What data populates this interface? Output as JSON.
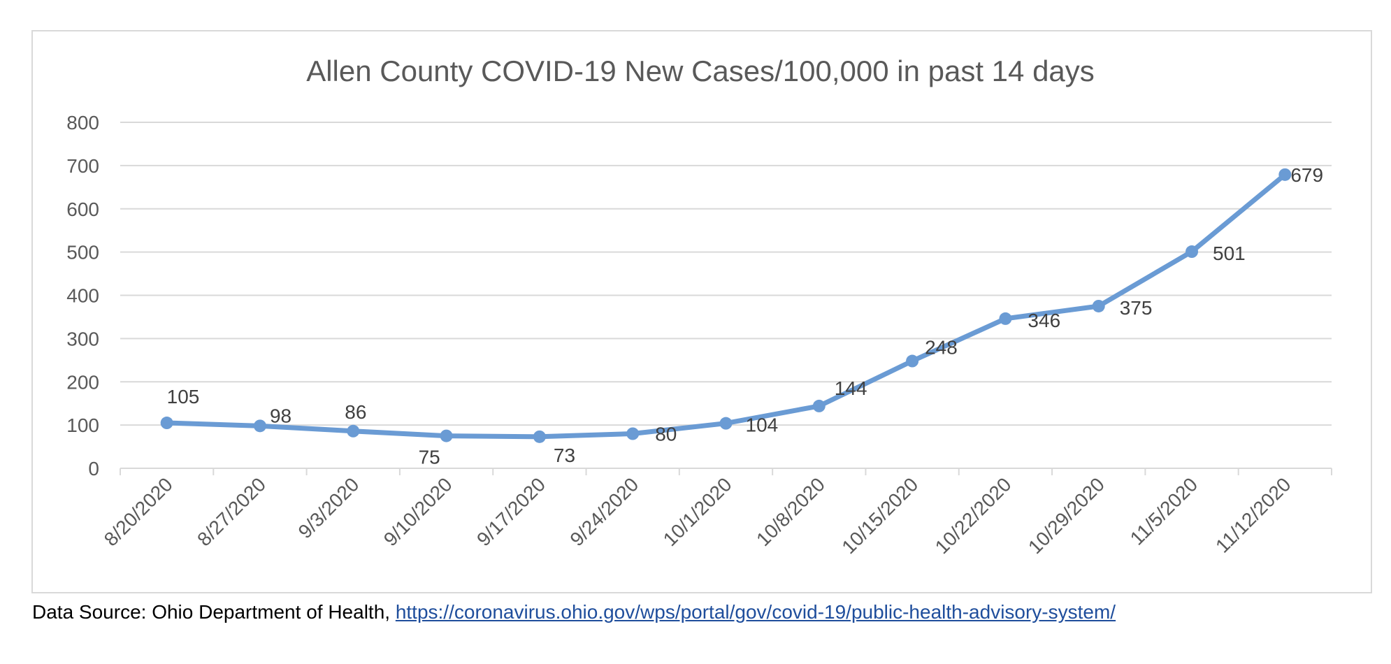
{
  "colors": {
    "series": "#6a9bd4",
    "grid": "#d9d9d9",
    "axis_text": "#595959",
    "label_text": "#404040",
    "link": "#1f4e9c"
  },
  "chart_data": {
    "type": "line",
    "title": "Allen County COVID-19 New Cases/100,000 in past 14 days",
    "xlabel": "",
    "ylabel": "",
    "categories": [
      "8/20/2020",
      "8/27/2020",
      "9/3/2020",
      "9/10/2020",
      "9/17/2020",
      "9/24/2020",
      "10/1/2020",
      "10/8/2020",
      "10/15/2020",
      "10/22/2020",
      "10/29/2020",
      "11/5/2020",
      "11/12/2020"
    ],
    "series": [
      {
        "values": [
          105,
          98,
          86,
          75,
          73,
          80,
          104,
          144,
          248,
          346,
          375,
          501,
          679
        ],
        "data_labels": [
          "105",
          "98",
          "86",
          "75",
          "73",
          "80",
          "104",
          "144",
          "248",
          "346",
          "375",
          "501",
          "679"
        ]
      }
    ],
    "ylim": [
      0,
      800
    ],
    "yticks": [
      0,
      100,
      200,
      300,
      400,
      500,
      600,
      700,
      800
    ],
    "ytick_labels": [
      "0",
      "100",
      "200",
      "300",
      "400",
      "500",
      "600",
      "700",
      "800"
    ],
    "grid": true,
    "legend": "none",
    "markers": true
  },
  "source": {
    "prefix": "Data Source: Ohio Department of Health, ",
    "link_text": "https://coronavirus.ohio.gov/wps/portal/gov/covid-19/public-health-advisory-system/"
  }
}
